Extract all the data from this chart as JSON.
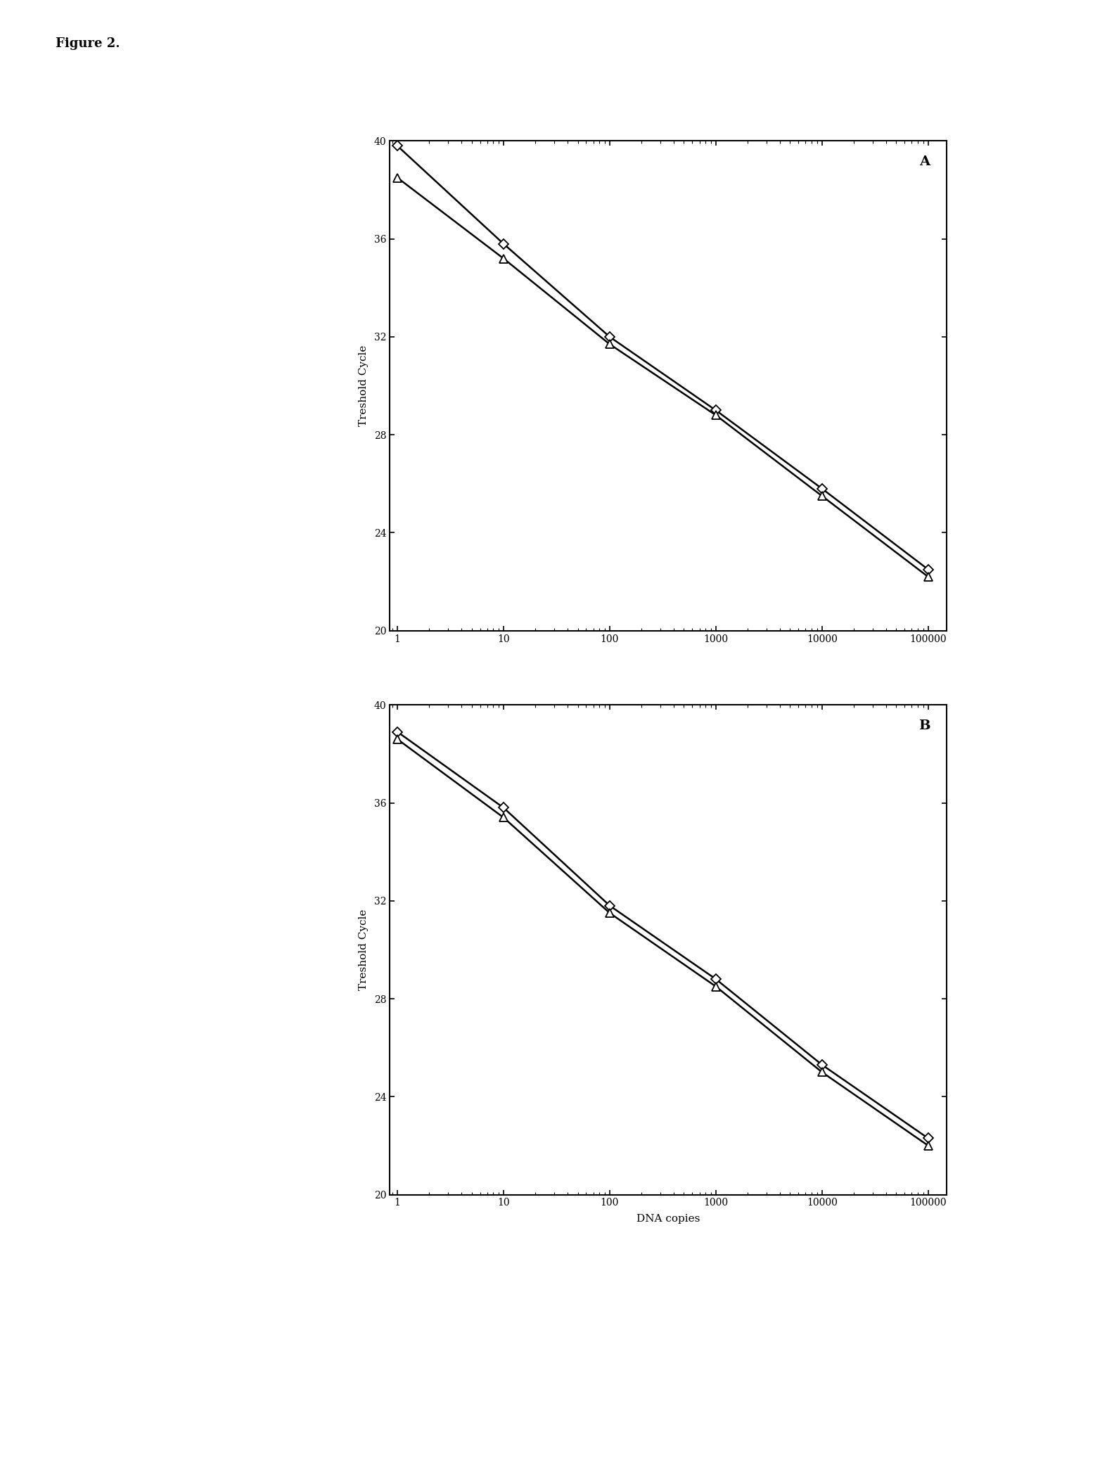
{
  "plot_A": {
    "label": "A",
    "series1": {
      "x": [
        1,
        10,
        100,
        1000,
        10000,
        100000
      ],
      "y": [
        39.8,
        35.8,
        32.0,
        29.0,
        25.8,
        22.5
      ],
      "marker": "D",
      "markersize": 7
    },
    "series2": {
      "x": [
        1,
        10,
        100,
        1000,
        10000,
        100000
      ],
      "y": [
        38.5,
        35.2,
        31.7,
        28.8,
        25.5,
        22.2
      ],
      "marker": "^",
      "markersize": 8
    }
  },
  "plot_B": {
    "label": "B",
    "series1": {
      "x": [
        1,
        10,
        100,
        1000,
        10000,
        100000
      ],
      "y": [
        38.9,
        35.8,
        31.8,
        28.8,
        25.3,
        22.3
      ],
      "marker": "D",
      "markersize": 7
    },
    "series2": {
      "x": [
        1,
        10,
        100,
        1000,
        10000,
        100000
      ],
      "y": [
        38.6,
        35.4,
        31.5,
        28.5,
        25.0,
        22.0
      ],
      "marker": "^",
      "markersize": 8
    }
  },
  "ylabel": "Treshold Cycle",
  "xlabel": "DNA copies",
  "ylim": [
    20,
    40
  ],
  "yticks": [
    20,
    24,
    28,
    32,
    36,
    40
  ],
  "xtick_labels": [
    "1",
    "10",
    "100",
    "1000",
    "10000",
    "100000"
  ],
  "figure_label": "Figure 2.",
  "figure_label_fontsize": 13,
  "axis_label_fontsize": 11,
  "tick_fontsize": 10,
  "panel_label_fontsize": 14,
  "linewidth": 1.8
}
